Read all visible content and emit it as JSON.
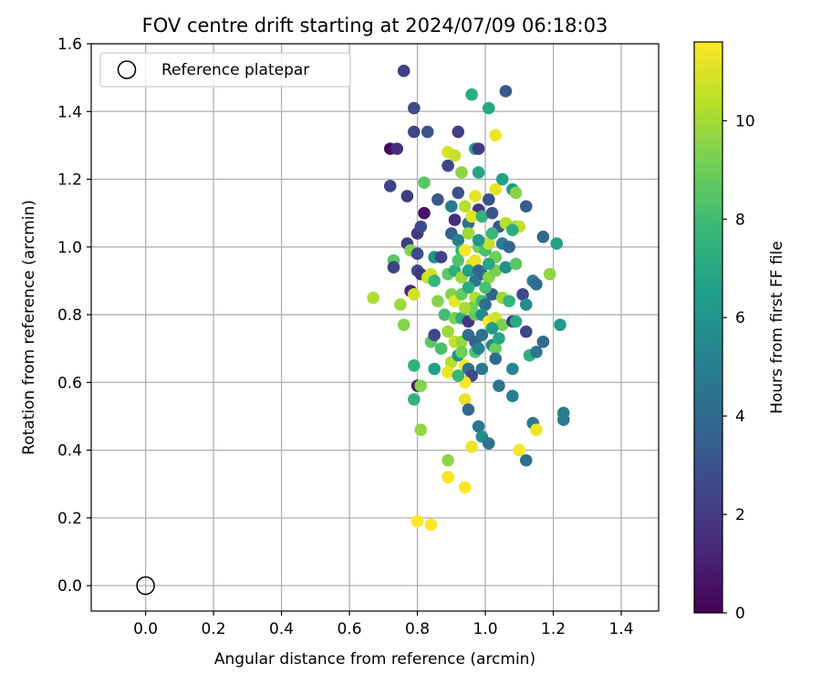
{
  "chart_data": {
    "type": "scatter",
    "title": "FOV centre drift starting at 2024/07/09 06:18:03",
    "xlabel": "Angular distance from reference (arcmin)",
    "ylabel": "Rotation from reference (arcmin)",
    "xlim": [
      -0.16,
      1.51
    ],
    "ylim": [
      -0.075,
      1.6
    ],
    "xticks": [
      0.0,
      0.2,
      0.4,
      0.6,
      0.8,
      1.0,
      1.2,
      1.4
    ],
    "xtick_labels": [
      "0.0",
      "0.2",
      "0.4",
      "0.6",
      "0.8",
      "1.0",
      "1.2",
      "1.4"
    ],
    "yticks": [
      0.0,
      0.2,
      0.4,
      0.6,
      0.8,
      1.0,
      1.2,
      1.4,
      1.6
    ],
    "ytick_labels": [
      "0.0",
      "0.2",
      "0.4",
      "0.6",
      "0.8",
      "1.0",
      "1.2",
      "1.4",
      "1.6"
    ],
    "grid": true,
    "legend": {
      "position": "top-left",
      "entries": [
        "Reference platepar"
      ]
    },
    "reference_point": {
      "x": 0.0,
      "y": 0.0,
      "marker": "open-circle",
      "color": "#000000"
    },
    "colorbar": {
      "label": "Hours from first FF file",
      "range": [
        0,
        11.6
      ],
      "ticks": [
        0,
        2,
        4,
        6,
        8,
        10
      ],
      "tick_labels": [
        "0",
        "2",
        "4",
        "6",
        "8",
        "10"
      ],
      "colormap": "viridis",
      "colormap_stops": [
        "#440154",
        "#482878",
        "#3e4989",
        "#31688e",
        "#26828e",
        "#1f9e89",
        "#35b779",
        "#6ece58",
        "#b5de2b",
        "#fde725"
      ]
    },
    "points": [
      [
        0.76,
        1.52,
        2.2
      ],
      [
        0.79,
        1.41,
        2.6
      ],
      [
        0.96,
        1.45,
        7.2
      ],
      [
        1.06,
        1.46,
        3.2
      ],
      [
        1.01,
        1.41,
        7.0
      ],
      [
        0.72,
        1.29,
        0.3
      ],
      [
        0.74,
        1.29,
        1.6
      ],
      [
        0.79,
        1.34,
        2.5
      ],
      [
        0.83,
        1.34,
        3.0
      ],
      [
        0.92,
        1.34,
        2.2
      ],
      [
        1.03,
        1.33,
        11.3
      ],
      [
        0.89,
        1.28,
        11.0
      ],
      [
        0.91,
        1.27,
        10.6
      ],
      [
        0.97,
        1.29,
        6.4
      ],
      [
        0.98,
        1.29,
        2.0
      ],
      [
        0.72,
        1.18,
        2.4
      ],
      [
        0.77,
        1.15,
        2.0
      ],
      [
        0.82,
        1.19,
        8.5
      ],
      [
        0.89,
        1.24,
        2.5
      ],
      [
        0.93,
        1.22,
        9.6
      ],
      [
        0.98,
        1.22,
        6.8
      ],
      [
        1.05,
        1.2,
        6.6
      ],
      [
        1.08,
        1.17,
        6.4
      ],
      [
        1.03,
        1.17,
        11.2
      ],
      [
        1.09,
        1.16,
        9.5
      ],
      [
        0.8,
        1.04,
        2.0
      ],
      [
        0.81,
        1.06,
        2.6
      ],
      [
        0.82,
        1.1,
        0.6
      ],
      [
        0.86,
        1.14,
        3.2
      ],
      [
        0.9,
        1.12,
        4.8
      ],
      [
        0.92,
        1.16,
        2.9
      ],
      [
        0.94,
        1.12,
        10.4
      ],
      [
        0.97,
        1.15,
        11.2
      ],
      [
        0.98,
        1.11,
        1.8
      ],
      [
        1.01,
        1.14,
        2.9
      ],
      [
        1.12,
        1.12,
        3.4
      ],
      [
        0.91,
        1.08,
        1.5
      ],
      [
        0.95,
        1.07,
        4.2
      ],
      [
        0.96,
        1.09,
        11.1
      ],
      [
        0.99,
        1.09,
        7.6
      ],
      [
        1.02,
        1.1,
        3.1
      ],
      [
        1.04,
        1.06,
        3.3
      ],
      [
        1.06,
        1.07,
        10.3
      ],
      [
        1.09,
        1.06,
        9.8
      ],
      [
        1.1,
        1.06,
        10.5
      ],
      [
        0.77,
        1.01,
        2.2
      ],
      [
        0.78,
        0.99,
        9.4
      ],
      [
        0.8,
        0.98,
        2.6
      ],
      [
        0.85,
        0.97,
        6.0
      ],
      [
        0.87,
        0.97,
        2.4
      ],
      [
        0.9,
        1.04,
        3.6
      ],
      [
        0.92,
        1.02,
        5.0
      ],
      [
        0.93,
        0.99,
        7.4
      ],
      [
        0.94,
        0.99,
        11.5
      ],
      [
        0.96,
        0.95,
        11.0
      ],
      [
        0.97,
        0.96,
        11.3
      ],
      [
        0.98,
        1.0,
        9.1
      ],
      [
        1.0,
        0.99,
        8.2
      ],
      [
        1.01,
        1.01,
        10.6
      ],
      [
        1.02,
        1.04,
        7.8
      ],
      [
        1.05,
        1.01,
        5.0
      ],
      [
        1.07,
        1.0,
        3.8
      ],
      [
        1.08,
        1.05,
        7.2
      ],
      [
        1.17,
        1.03,
        3.9
      ],
      [
        1.21,
        1.01,
        6.6
      ],
      [
        0.73,
        0.96,
        8.6
      ],
      [
        0.73,
        0.94,
        2.4
      ],
      [
        0.8,
        0.93,
        2.9
      ],
      [
        0.81,
        0.92,
        1.9
      ],
      [
        0.83,
        0.91,
        10.6
      ],
      [
        0.84,
        0.92,
        10.9
      ],
      [
        0.85,
        0.9,
        7.7
      ],
      [
        0.89,
        0.92,
        8.6
      ],
      [
        0.91,
        0.93,
        7.4
      ],
      [
        0.93,
        0.91,
        9.9
      ],
      [
        0.95,
        0.93,
        6.6
      ],
      [
        0.97,
        0.9,
        4.6
      ],
      [
        0.99,
        0.92,
        3.6
      ],
      [
        1.01,
        0.91,
        9.5
      ],
      [
        1.03,
        0.93,
        9.2
      ],
      [
        1.06,
        0.94,
        5.8
      ],
      [
        1.09,
        0.95,
        8.6
      ],
      [
        1.14,
        0.9,
        4.9
      ],
      [
        1.15,
        0.89,
        4.0
      ],
      [
        1.19,
        0.92,
        9.6
      ],
      [
        0.67,
        0.85,
        10.2
      ],
      [
        0.75,
        0.83,
        9.9
      ],
      [
        0.78,
        0.87,
        1.3
      ],
      [
        0.79,
        0.86,
        10.8
      ],
      [
        0.86,
        0.84,
        9.4
      ],
      [
        0.9,
        0.86,
        9.4
      ],
      [
        0.91,
        0.84,
        11.2
      ],
      [
        0.93,
        0.86,
        8.9
      ],
      [
        0.95,
        0.88,
        7.2
      ],
      [
        0.97,
        0.85,
        10.3
      ],
      [
        0.99,
        0.84,
        7.9
      ],
      [
        1.0,
        0.83,
        4.2
      ],
      [
        1.02,
        0.86,
        3.5
      ],
      [
        1.05,
        0.85,
        9.9
      ],
      [
        1.07,
        0.84,
        7.6
      ],
      [
        1.11,
        0.86,
        2.5
      ],
      [
        1.12,
        0.83,
        5.6
      ],
      [
        0.76,
        0.77,
        9.4
      ],
      [
        0.88,
        0.8,
        8.0
      ],
      [
        0.91,
        0.79,
        9.3
      ],
      [
        0.93,
        0.79,
        7.2
      ],
      [
        0.95,
        0.78,
        1.8
      ],
      [
        0.97,
        0.8,
        8.8
      ],
      [
        0.99,
        0.8,
        5.5
      ],
      [
        1.01,
        0.78,
        11.5
      ],
      [
        1.03,
        0.79,
        10.8
      ],
      [
        1.05,
        0.77,
        9.2
      ],
      [
        1.08,
        0.78,
        1.8
      ],
      [
        1.09,
        0.78,
        7.0
      ],
      [
        1.12,
        0.75,
        2.5
      ],
      [
        1.22,
        0.77,
        6.2
      ],
      [
        0.84,
        0.72,
        8.6
      ],
      [
        0.85,
        0.74,
        2.5
      ],
      [
        0.89,
        0.75,
        9.9
      ],
      [
        0.91,
        0.72,
        10.6
      ],
      [
        0.93,
        0.72,
        9.8
      ],
      [
        0.95,
        0.74,
        4.2
      ],
      [
        0.97,
        0.72,
        3.6
      ],
      [
        0.99,
        0.74,
        4.4
      ],
      [
        1.02,
        0.71,
        5.4
      ],
      [
        1.03,
        0.7,
        9.0
      ],
      [
        1.13,
        0.68,
        7.4
      ],
      [
        1.15,
        0.69,
        4.6
      ],
      [
        1.17,
        0.72,
        4.0
      ],
      [
        0.79,
        0.65,
        7.5
      ],
      [
        0.85,
        0.64,
        6.6
      ],
      [
        0.87,
        0.7,
        8.2
      ],
      [
        0.9,
        0.66,
        10.3
      ],
      [
        0.92,
        0.68,
        6.0
      ],
      [
        0.93,
        0.69,
        9.0
      ],
      [
        0.94,
        0.65,
        11.6
      ],
      [
        0.95,
        0.64,
        4.4
      ],
      [
        0.96,
        0.62,
        2.6
      ],
      [
        0.97,
        0.69,
        8.4
      ],
      [
        0.99,
        0.64,
        4.7
      ],
      [
        1.03,
        0.67,
        4.0
      ],
      [
        1.08,
        0.64,
        5.4
      ],
      [
        0.8,
        0.59,
        1.1
      ],
      [
        0.81,
        0.59,
        9.4
      ],
      [
        0.89,
        0.63,
        11.3
      ],
      [
        0.94,
        0.6,
        11.6
      ],
      [
        1.04,
        0.59,
        4.4
      ],
      [
        0.79,
        0.55,
        7.5
      ],
      [
        0.94,
        0.55,
        11.2
      ],
      [
        0.95,
        0.52,
        4.0
      ],
      [
        1.08,
        0.56,
        5.1
      ],
      [
        0.98,
        0.47,
        4.6
      ],
      [
        0.99,
        0.44,
        5.8
      ],
      [
        1.01,
        0.42,
        4.5
      ],
      [
        1.14,
        0.48,
        4.7
      ],
      [
        1.15,
        0.46,
        11.3
      ],
      [
        1.23,
        0.51,
        4.8
      ],
      [
        1.23,
        0.49,
        4.8
      ],
      [
        0.81,
        0.46,
        9.7
      ],
      [
        0.89,
        0.37,
        9.6
      ],
      [
        0.96,
        0.41,
        11.3
      ],
      [
        1.1,
        0.4,
        11.4
      ],
      [
        1.12,
        0.37,
        4.3
      ],
      [
        0.89,
        0.32,
        11.5
      ],
      [
        0.94,
        0.29,
        11.6
      ],
      [
        0.8,
        0.19,
        11.6
      ],
      [
        0.84,
        0.18,
        11.6
      ],
      [
        0.95,
        1.04,
        9.9
      ],
      [
        0.98,
        1.02,
        6.2
      ],
      [
        1.03,
        0.97,
        9.0
      ],
      [
        0.92,
        0.96,
        8.4
      ],
      [
        1.01,
        0.95,
        6.9
      ],
      [
        0.98,
        0.93,
        3.8
      ],
      [
        1.0,
        0.88,
        8.2
      ],
      [
        0.96,
        0.82,
        9.0
      ],
      [
        0.94,
        0.82,
        10.0
      ],
      [
        1.02,
        0.76,
        6.4
      ],
      [
        0.98,
        0.7,
        5.1
      ],
      [
        0.92,
        0.62,
        7.8
      ],
      [
        1.04,
        0.73,
        6.9
      ]
    ]
  }
}
